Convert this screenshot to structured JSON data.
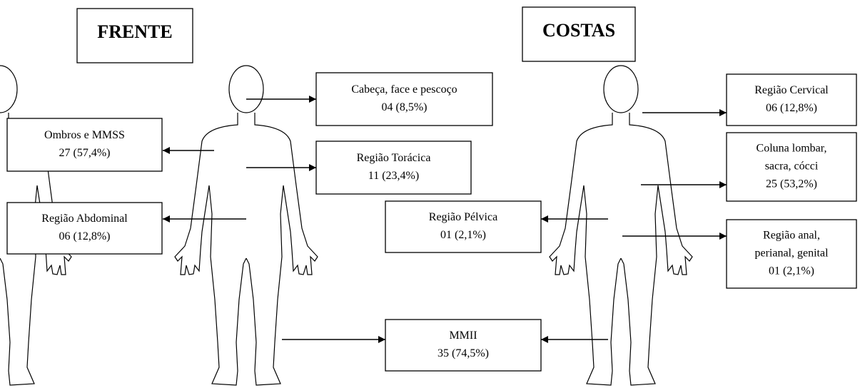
{
  "front": {
    "title": "FRENTE"
  },
  "back": {
    "title": "COSTAS"
  },
  "boxes": [
    {
      "lines": [
        "Cabeça, face e pescoço",
        "04 (8,5%)"
      ]
    },
    {
      "lines": [
        "Ombros e MMSS",
        "27 (57,4%)"
      ]
    },
    {
      "lines": [
        "Região Torácica",
        "11 (23,4%)"
      ]
    },
    {
      "lines": [
        "Região Abdominal",
        "06 (12,8%)"
      ]
    },
    {
      "lines": [
        "Região Cervical",
        "06 (12,8%)"
      ]
    },
    {
      "lines": [
        "Coluna lombar,",
        "sacra, cócci",
        "25 (53,2%)"
      ]
    },
    {
      "lines": [
        "Região Pélvica",
        "01 (2,1%)"
      ]
    },
    {
      "lines": [
        "Região anal,",
        "perianal, genital",
        "01 (2,1%)"
      ]
    },
    {
      "lines": [
        "MMII",
        "35 (74,5%)"
      ]
    }
  ]
}
